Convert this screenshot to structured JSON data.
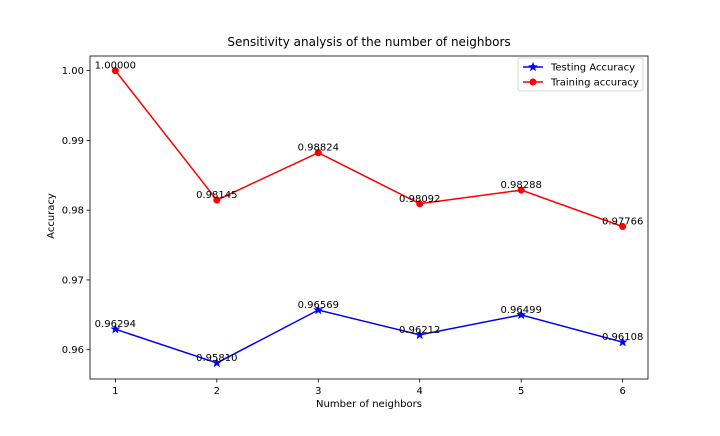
{
  "chart_data": {
    "type": "line",
    "title": "Sensitivity analysis of the number of neighbors",
    "xlabel": "Number of neighbors",
    "ylabel": "Accuracy",
    "x": [
      1,
      2,
      3,
      4,
      5,
      6
    ],
    "xlim": [
      0.75,
      6.25
    ],
    "ylim": [
      0.9558,
      1.0021
    ],
    "xticks": [
      1,
      2,
      3,
      4,
      5,
      6
    ],
    "yticks": [
      0.96,
      0.97,
      0.98,
      0.99,
      1.0
    ],
    "ytick_labels": [
      "0.96",
      "0.97",
      "0.98",
      "0.99",
      "1.00"
    ],
    "grid": false,
    "legend_position": "top-right",
    "series": [
      {
        "name": "Testing Accuracy",
        "color": "#0000ff",
        "marker": "star",
        "values": [
          0.96294,
          0.9581,
          0.96569,
          0.96212,
          0.96499,
          0.96108
        ],
        "labels": [
          "0.96294",
          "0.95810",
          "0.96569",
          "0.96212",
          "0.96499",
          "0.96108"
        ]
      },
      {
        "name": "Training accuracy",
        "color": "#ff0000",
        "marker": "circle",
        "values": [
          1.0,
          0.98145,
          0.98824,
          0.98092,
          0.98288,
          0.97766
        ],
        "labels": [
          "1.00000",
          "0.98145",
          "0.98824",
          "0.98092",
          "0.98288",
          "0.97766"
        ]
      }
    ]
  }
}
